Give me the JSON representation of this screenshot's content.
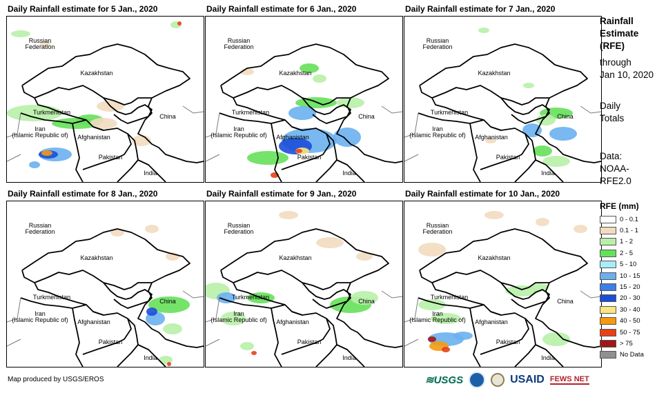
{
  "panels": [
    {
      "title": "Daily Rainfall estimate for 5 Jan., 2020"
    },
    {
      "title": "Daily Rainfall estimate for 6 Jan., 2020"
    },
    {
      "title": "Daily Rainfall estimate for 7 Jan., 2020"
    },
    {
      "title": "Daily Rainfall estimate for 8 Jan., 2020"
    },
    {
      "title": "Daily Rainfall estimate for 9 Jan., 2020"
    },
    {
      "title": "Daily Rainfall estimate for 10 Jan., 2020"
    }
  ],
  "map_labels": {
    "russia_1": "Russian",
    "russia_2": "Federation",
    "kazakhstan": "Kazakhstan",
    "turkmenistan": "Turkmenistan",
    "china": "China",
    "iran_1": "Iran",
    "iran_2": "(Islamic Republic of)",
    "afghanistan": "Afghanistan",
    "pakistan": "Pakistan",
    "india": "India"
  },
  "side": {
    "title_1": "Rainfall",
    "title_2": "Estimate",
    "title_3": "(RFE)",
    "through_1": "through",
    "through_2": "Jan 10, 2020",
    "daily_1": "Daily",
    "daily_2": "Totals",
    "data_1": "Data:",
    "data_2": "NOAA-",
    "data_3": "RFE2.0"
  },
  "legend": {
    "title": "RFE (mm)",
    "items": [
      {
        "label": "0 - 0.1",
        "color": "#ffffff"
      },
      {
        "label": "0.1 - 1",
        "color": "#f1dcc0"
      },
      {
        "label": "1 - 2",
        "color": "#b8f0a8"
      },
      {
        "label": "2 - 5",
        "color": "#66e05a"
      },
      {
        "label": "5 - 10",
        "color": "#a8ecf8"
      },
      {
        "label": "10 - 15",
        "color": "#6ab0f0"
      },
      {
        "label": "15 - 20",
        "color": "#3a80e8"
      },
      {
        "label": "20 - 30",
        "color": "#1c4fd8"
      },
      {
        "label": "30 - 40",
        "color": "#fce680"
      },
      {
        "label": "40 - 50",
        "color": "#f59a10"
      },
      {
        "label": "50 - 75",
        "color": "#e8401a"
      },
      {
        "label": "> 75",
        "color": "#a01818"
      },
      {
        "label": "No Data",
        "color": "#909090"
      }
    ]
  },
  "credit": "Map produced by USGS/EROS",
  "logos": {
    "usgs": "≋USGS",
    "usaid": "USAID",
    "fews": "FEWS NET"
  },
  "colors": {
    "border": "#000000",
    "neighbor_border": "#7a7a7a"
  }
}
